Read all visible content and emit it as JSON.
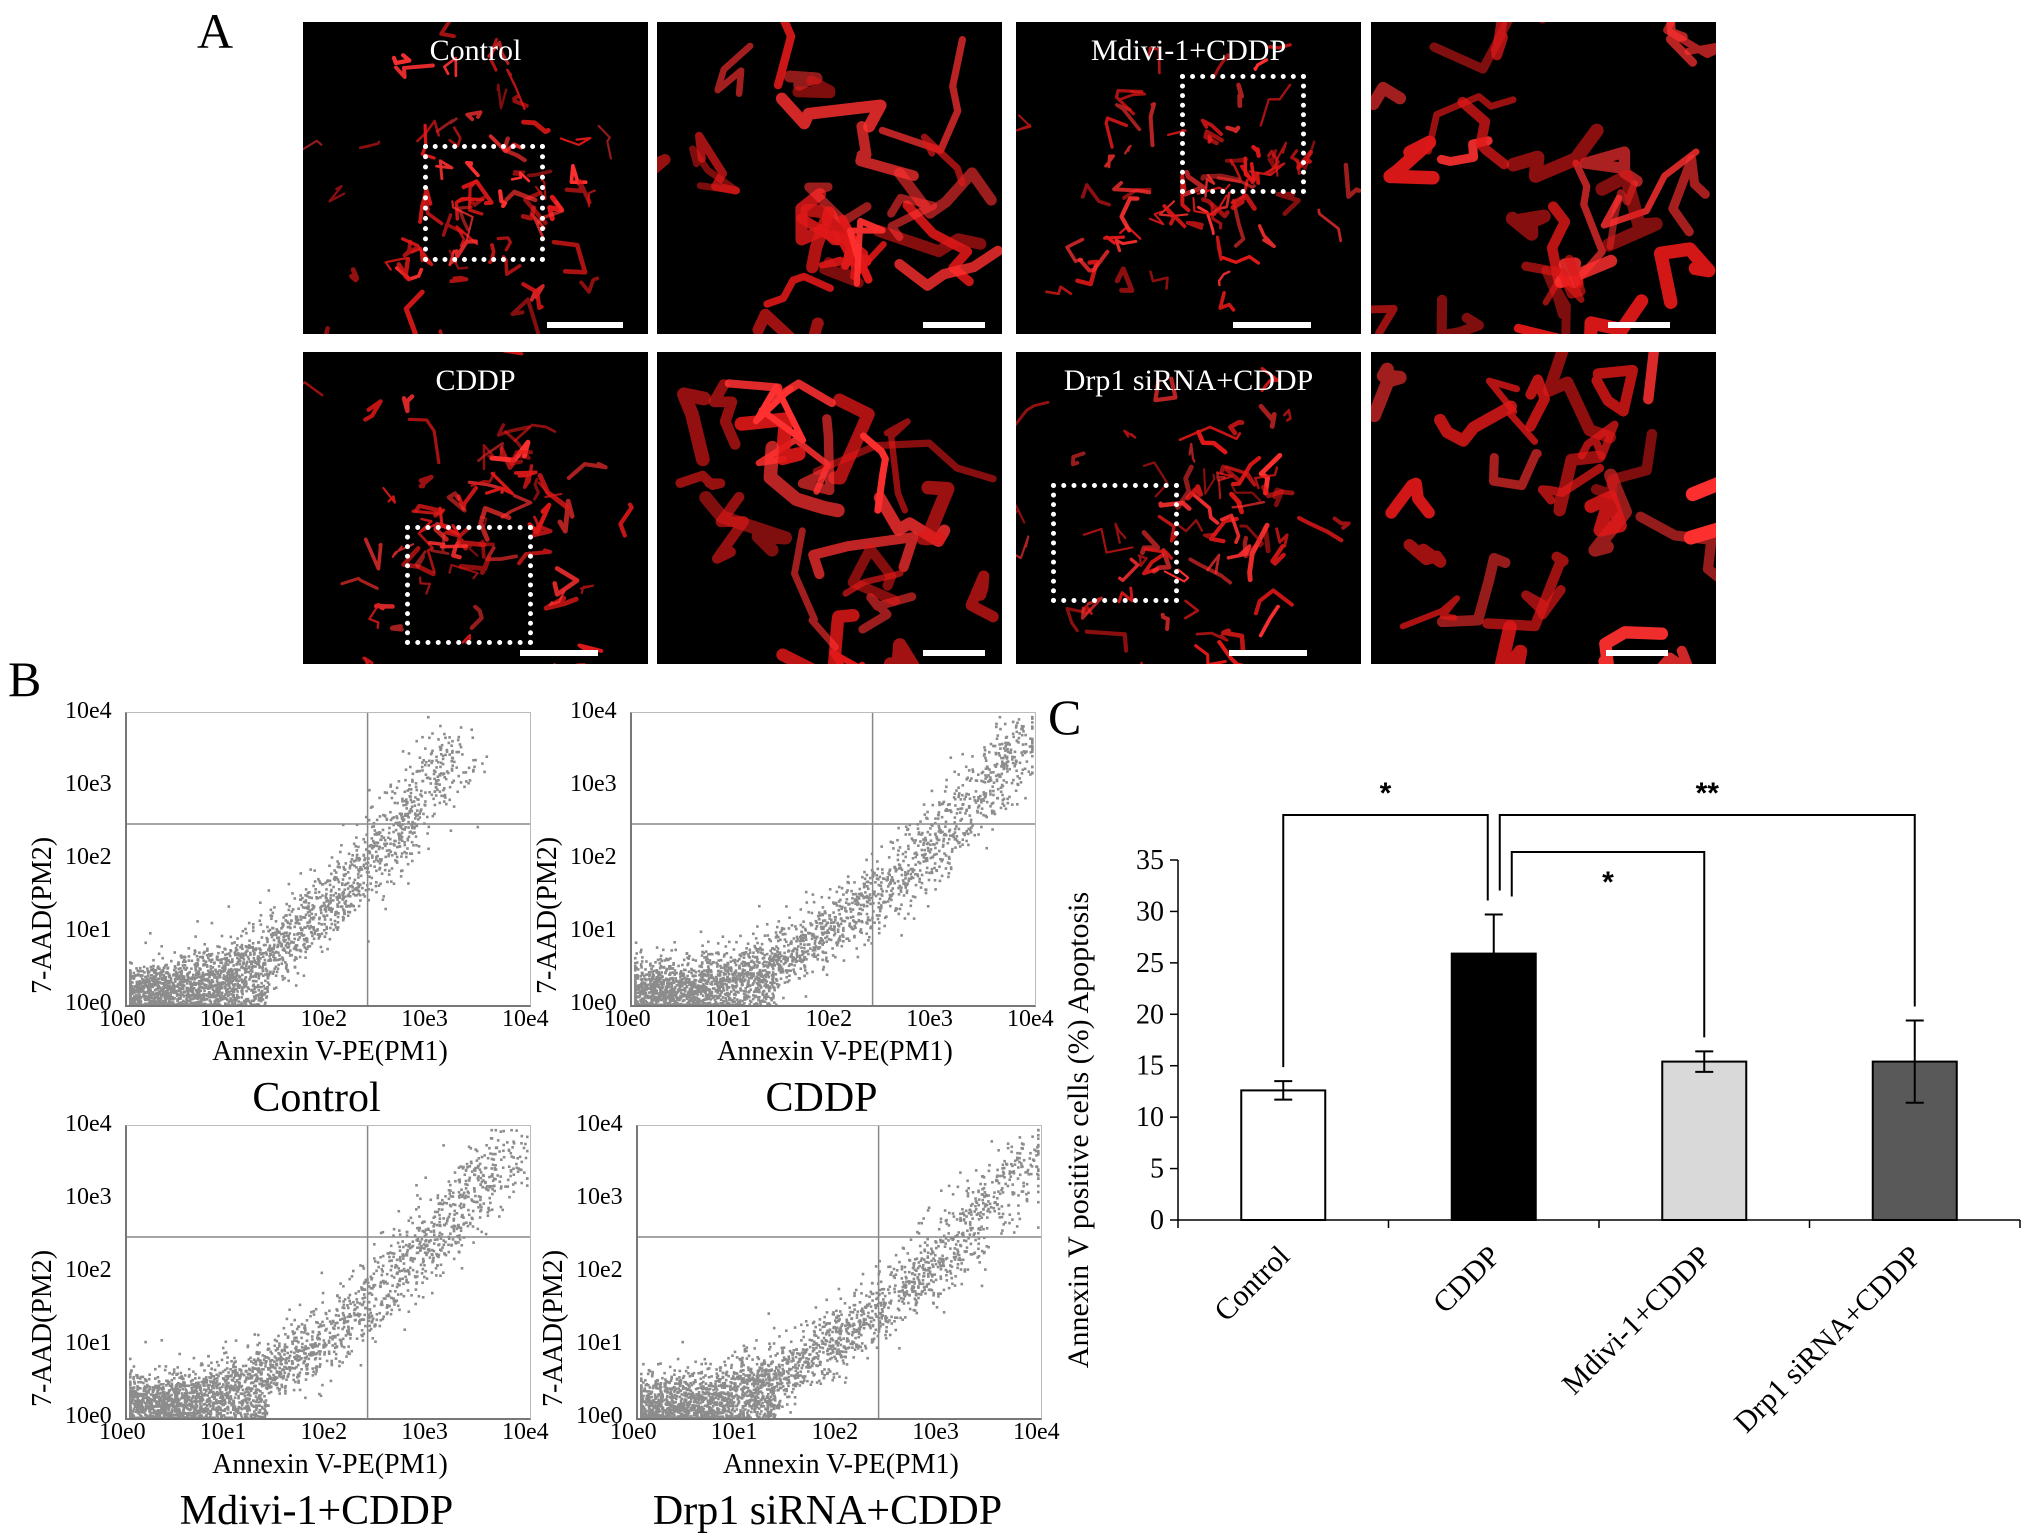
{
  "panels": {
    "a": "A",
    "b": "B",
    "c": "C"
  },
  "micrographs": [
    {
      "caption": "Control"
    },
    {
      "caption": ""
    },
    {
      "caption": "Mdivi-1+CDDP"
    },
    {
      "caption": ""
    },
    {
      "caption": "CDDP"
    },
    {
      "caption": ""
    },
    {
      "caption": "Drp1 siRNA+CDDP"
    },
    {
      "caption": ""
    }
  ],
  "flow_plots": [
    {
      "title": "Control",
      "xlabel": "Annexin V-PE(PM1)",
      "ylabel": "7-AAD(PM2)",
      "xticks": [
        "10e0",
        "10e1",
        "10e2",
        "10e3",
        "10e4"
      ],
      "yticks": [
        "10e4",
        "10e3",
        "10e2",
        "10e1",
        "10e0"
      ]
    },
    {
      "title": "CDDP",
      "xlabel": "Annexin V-PE(PM1)",
      "ylabel": "7-AAD(PM2)",
      "xticks": [
        "10e0",
        "10e1",
        "10e2",
        "10e3",
        "10e4"
      ],
      "yticks": [
        "10e4",
        "10e3",
        "10e2",
        "10e1",
        "10e0"
      ]
    },
    {
      "title": "Mdivi-1+CDDP",
      "xlabel": "Annexin V-PE(PM1)",
      "ylabel": "7-AAD(PM2)",
      "xticks": [
        "10e0",
        "10e1",
        "10e2",
        "10e3",
        "10e4"
      ],
      "yticks": [
        "10e4",
        "10e3",
        "10e2",
        "10e1",
        "10e0"
      ]
    },
    {
      "title": "Drp1 siRNA+CDDP",
      "xlabel": "Annexin V-PE(PM1)",
      "ylabel": "7-AAD(PM2)",
      "xticks": [
        "10e0",
        "10e1",
        "10e2",
        "10e3",
        "10e4"
      ],
      "yticks": [
        "10e4",
        "10e3",
        "10e2",
        "10e1",
        "10e0"
      ]
    }
  ],
  "chart_data": {
    "type": "bar",
    "title": "",
    "xlabel": "",
    "ylabel": "Annexin  V positive cells (%) Apoptosis",
    "categories": [
      "Control",
      "CDDP",
      "Mdivi-1+CDDP",
      "Drp1 siRNA+CDDP"
    ],
    "values": [
      12.6,
      25.9,
      15.4,
      15.4
    ],
    "errors": [
      0.9,
      3.8,
      1.0,
      4.0
    ],
    "bar_colors": [
      "#ffffff",
      "#000000",
      "#d9d9d9",
      "#595959"
    ],
    "ylim": [
      0,
      35
    ],
    "yticks": [
      0,
      5,
      10,
      15,
      20,
      25,
      30,
      35
    ],
    "grid": false,
    "significance": [
      {
        "from": "Control",
        "to": "CDDP",
        "label": "*"
      },
      {
        "from": "CDDP",
        "to": "Mdivi-1+CDDP",
        "label": "*"
      },
      {
        "from": "CDDP",
        "to": "Drp1 siRNA+CDDP",
        "label": "**"
      }
    ]
  }
}
